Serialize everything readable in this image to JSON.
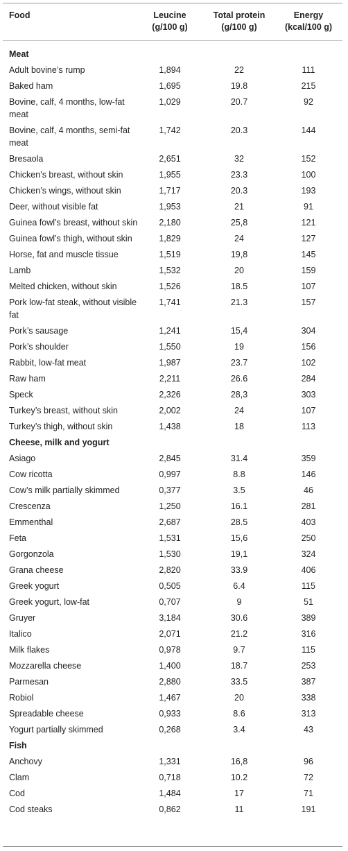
{
  "header": {
    "food": "Food",
    "leucine_line1": "Leucine",
    "leucine_line2": "(g/100 g)",
    "protein_line1": "Total protein",
    "protein_line2": "(g/100 g)",
    "energy_line1": "Energy",
    "energy_line2": "(kcal/100 g)"
  },
  "sections": [
    {
      "title": "Meat",
      "rows": [
        {
          "food": "Adult bovine’s rump",
          "leucine": "1,894",
          "protein": "22",
          "energy": "111"
        },
        {
          "food": "Baked ham",
          "leucine": "1,695",
          "protein": "19.8",
          "energy": "215"
        },
        {
          "food": "Bovine, calf, 4 months, low-fat meat",
          "leucine": "1,029",
          "protein": "20.7",
          "energy": "92"
        },
        {
          "food": "Bovine, calf, 4 months, semi-fat meat",
          "leucine": "1,742",
          "protein": "20.3",
          "energy": "144"
        },
        {
          "food": "Bresaola",
          "leucine": "2,651",
          "protein": "32",
          "energy": "152"
        },
        {
          "food": "Chicken’s breast, without skin",
          "leucine": "1,955",
          "protein": "23.3",
          "energy": "100"
        },
        {
          "food": "Chicken’s wings, without skin",
          "leucine": "1,717",
          "protein": "20.3",
          "energy": "193"
        },
        {
          "food": "Deer, without visible fat",
          "leucine": "1,953",
          "protein": "21",
          "energy": "91"
        },
        {
          "food": "Guinea fowl’s breast, without skin",
          "leucine": "2,180",
          "protein": "25,8",
          "energy": "121"
        },
        {
          "food": "Guinea fowl’s thigh, without skin",
          "leucine": "1,829",
          "protein": "24",
          "energy": "127"
        },
        {
          "food": "Horse, fat and muscle tissue",
          "leucine": "1,519",
          "protein": "19,8",
          "energy": "145"
        },
        {
          "food": "Lamb",
          "leucine": "1,532",
          "protein": "20",
          "energy": "159"
        },
        {
          "food": "Melted chicken, without skin",
          "leucine": "1,526",
          "protein": "18.5",
          "energy": "107"
        },
        {
          "food": "Pork low-fat steak, without visible fat",
          "leucine": "1,741",
          "protein": "21.3",
          "energy": "157"
        },
        {
          "food": "Pork’s sausage",
          "leucine": "1,241",
          "protein": "15,4",
          "energy": "304"
        },
        {
          "food": "Pork’s shoulder",
          "leucine": "1,550",
          "protein": "19",
          "energy": "156"
        },
        {
          "food": "Rabbit, low-fat meat",
          "leucine": "1,987",
          "protein": "23.7",
          "energy": "102"
        },
        {
          "food": "Raw ham",
          "leucine": "2,211",
          "protein": "26.6",
          "energy": "284"
        },
        {
          "food": "Speck",
          "leucine": "2,326",
          "protein": "28,3",
          "energy": "303"
        },
        {
          "food": "Turkey’s breast, without skin",
          "leucine": "2,002",
          "protein": "24",
          "energy": "107"
        },
        {
          "food": "Turkey’s thigh, without skin",
          "leucine": "1,438",
          "protein": "18",
          "energy": "113"
        }
      ]
    },
    {
      "title": "Cheese, milk and yogurt",
      "rows": [
        {
          "food": "Asiago",
          "leucine": "2,845",
          "protein": "31.4",
          "energy": "359"
        },
        {
          "food": "Cow ricotta",
          "leucine": "0,997",
          "protein": "8.8",
          "energy": "146"
        },
        {
          "food": "Cow’s milk partially skimmed",
          "leucine": "0,377",
          "protein": "3.5",
          "energy": "46"
        },
        {
          "food": "Crescenza",
          "leucine": "1,250",
          "protein": "16.1",
          "energy": "281"
        },
        {
          "food": "Emmenthal",
          "leucine": "2,687",
          "protein": "28.5",
          "energy": "403"
        },
        {
          "food": "Feta",
          "leucine": "1,531",
          "protein": "15,6",
          "energy": "250"
        },
        {
          "food": "Gorgonzola",
          "leucine": "1,530",
          "protein": "19,1",
          "energy": "324"
        },
        {
          "food": "Grana cheese",
          "leucine": "2,820",
          "protein": "33.9",
          "energy": "406"
        },
        {
          "food": "Greek yogurt",
          "leucine": "0,505",
          "protein": "6.4",
          "energy": "115"
        },
        {
          "food": "Greek yogurt, low-fat",
          "leucine": "0,707",
          "protein": "9",
          "energy": "51"
        },
        {
          "food": "Gruyer",
          "leucine": "3,184",
          "protein": "30.6",
          "energy": "389"
        },
        {
          "food": "Italico",
          "leucine": "2,071",
          "protein": "21.2",
          "energy": "316"
        },
        {
          "food": "Milk flakes",
          "leucine": "0,978",
          "protein": "9.7",
          "energy": "115"
        },
        {
          "food": "Mozzarella cheese",
          "leucine": "1,400",
          "protein": "18.7",
          "energy": "253"
        },
        {
          "food": "Parmesan",
          "leucine": "2,880",
          "protein": "33.5",
          "energy": "387"
        },
        {
          "food": "Robiol",
          "leucine": "1,467",
          "protein": "20",
          "energy": "338"
        },
        {
          "food": "Spreadable cheese",
          "leucine": "0,933",
          "protein": "8.6",
          "energy": "313"
        },
        {
          "food": "Yogurt partially skimmed",
          "leucine": "0,268",
          "protein": "3.4",
          "energy": "43"
        }
      ]
    },
    {
      "title": "Fish",
      "rows": [
        {
          "food": "Anchovy",
          "leucine": "1,331",
          "protein": "16,8",
          "energy": "96"
        },
        {
          "food": "Clam",
          "leucine": "0,718",
          "protein": "10.2",
          "energy": "72"
        },
        {
          "food": "Cod",
          "leucine": "1,484",
          "protein": "17",
          "energy": "71"
        },
        {
          "food": "Cod steaks",
          "leucine": "0,862",
          "protein": "11",
          "energy": "191"
        }
      ]
    }
  ]
}
